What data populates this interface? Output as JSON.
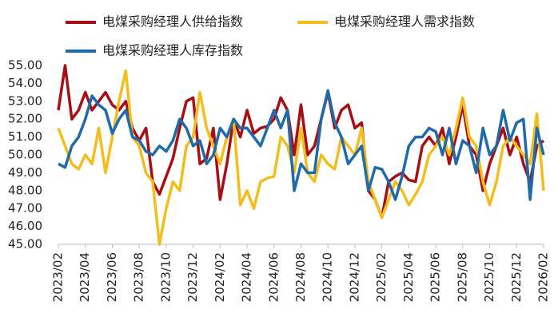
{
  "chart_data": {
    "type": "line",
    "categories": [
      "2023/02",
      null,
      null,
      null,
      "2023/04",
      null,
      null,
      null,
      "2023/06",
      null,
      null,
      null,
      "2023/08",
      null,
      null,
      null,
      "2023/10",
      null,
      null,
      null,
      "2023/12",
      null,
      null,
      null,
      "2024/02",
      null,
      null,
      null,
      "2024/04",
      null,
      null,
      null,
      "2024/06",
      null,
      null,
      null,
      "2024/08",
      null,
      null,
      null,
      "2024/10",
      null,
      null,
      null,
      "2024/12",
      null,
      null,
      null,
      "2025/02",
      null,
      null,
      null,
      "2025/04",
      null,
      null,
      null,
      "2025/06",
      null,
      null,
      null,
      "2025/08",
      null,
      null,
      null,
      "2025/10",
      null,
      null,
      null,
      "2025/12",
      null,
      null,
      null,
      "2026/02"
    ],
    "series": [
      {
        "name": "电煤采购经理人供给指数",
        "color": "#a50f15",
        "values": [
          52.5,
          55.0,
          52.0,
          52.5,
          53.5,
          52.5,
          53.0,
          53.5,
          52.8,
          52.5,
          53.0,
          51.5,
          50.8,
          51.5,
          48.5,
          47.8,
          48.8,
          49.8,
          51.5,
          53.0,
          53.2,
          49.5,
          49.8,
          51.5,
          47.5,
          49.5,
          52.0,
          51.0,
          52.5,
          51.2,
          51.5,
          51.6,
          52.0,
          53.2,
          52.5,
          50.0,
          52.8,
          50.0,
          50.5,
          52.0,
          53.5,
          51.5,
          52.5,
          52.8,
          51.5,
          51.8,
          48.0,
          47.5,
          46.5,
          48.5,
          48.8,
          49.0,
          48.6,
          48.5,
          50.5,
          51.0,
          50.5,
          51.5,
          49.5,
          51.0,
          52.8,
          50.5,
          50.0,
          48.0,
          49.5,
          50.5,
          51.5,
          50.0,
          51.0,
          49.5,
          48.5,
          50.5,
          50.8
        ]
      },
      {
        "name": "电煤采购经理人需求指数",
        "color": "#f2bd1d",
        "values": [
          51.5,
          50.5,
          49.5,
          49.2,
          50.0,
          49.5,
          51.5,
          49.0,
          51.0,
          53.0,
          54.7,
          51.0,
          50.5,
          49.0,
          48.5,
          45.0,
          47.0,
          48.5,
          48.0,
          50.5,
          51.0,
          53.5,
          51.5,
          50.5,
          49.5,
          51.0,
          52.0,
          47.2,
          48.0,
          47.0,
          48.5,
          48.7,
          48.8,
          51.0,
          50.5,
          49.0,
          51.5,
          49.0,
          48.5,
          50.0,
          49.5,
          49.2,
          51.0,
          50.5,
          50.0,
          51.5,
          48.5,
          47.5,
          46.5,
          47.5,
          48.5,
          48.0,
          47.2,
          47.8,
          48.5,
          50.0,
          50.5,
          51.0,
          50.0,
          51.5,
          53.2,
          51.0,
          50.5,
          48.5,
          47.2,
          48.5,
          50.5,
          51.0,
          50.5,
          50.0,
          49.5,
          52.3,
          48.0
        ]
      },
      {
        "name": "电煤采购经理人库存指数",
        "color": "#1f6aa8",
        "values": [
          49.5,
          49.3,
          50.5,
          51.0,
          52.0,
          53.3,
          52.8,
          52.5,
          51.2,
          52.0,
          52.5,
          51.0,
          50.8,
          50.2,
          50.0,
          50.5,
          50.2,
          50.8,
          52.0,
          51.5,
          50.5,
          50.8,
          49.5,
          50.0,
          51.5,
          51.0,
          52.0,
          51.5,
          51.5,
          51.0,
          50.5,
          51.5,
          52.5,
          51.5,
          52.5,
          48.0,
          49.5,
          49.0,
          49.0,
          52.0,
          53.6,
          51.8,
          51.0,
          49.5,
          50.0,
          50.5,
          48.0,
          49.3,
          49.2,
          48.5,
          47.5,
          48.8,
          50.5,
          51.0,
          51.0,
          51.5,
          51.3,
          50.0,
          51.5,
          49.5,
          50.8,
          50.5,
          49.0,
          51.5,
          50.0,
          50.5,
          52.5,
          50.8,
          51.8,
          52.0,
          47.5,
          51.5,
          50.0
        ]
      }
    ],
    "ylim": [
      45,
      55
    ],
    "yticks": [
      {
        "value": 45,
        "label": "45.00"
      },
      {
        "value": 46,
        "label": "46.00"
      },
      {
        "value": 47,
        "label": "47.00"
      },
      {
        "value": 48,
        "label": "48.00"
      },
      {
        "value": 49,
        "label": "49.00"
      },
      {
        "value": 50,
        "label": "50.00"
      },
      {
        "value": 51,
        "label": "51.00"
      },
      {
        "value": 52,
        "label": "52.00"
      },
      {
        "value": 53,
        "label": "53.00"
      },
      {
        "value": 54,
        "label": "54.00"
      },
      {
        "value": 55,
        "label": "55.00"
      }
    ],
    "grid": false,
    "legend": "top"
  }
}
